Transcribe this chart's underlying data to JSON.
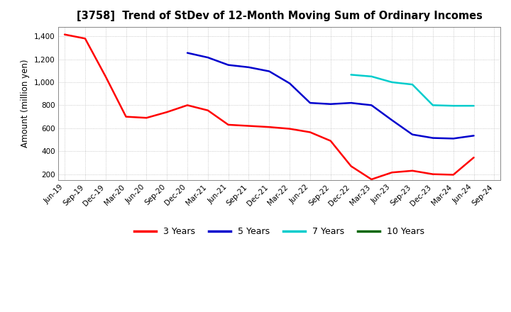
{
  "title": "[3758]  Trend of StDev of 12-Month Moving Sum of Ordinary Incomes",
  "ylabel": "Amount (million yen)",
  "background_color": "#ffffff",
  "grid_color": "#aaaaaa",
  "ylim": [
    150,
    1480
  ],
  "yticks": [
    200,
    400,
    600,
    800,
    1000,
    1200,
    1400
  ],
  "x_labels": [
    "Jun-19",
    "Sep-19",
    "Dec-19",
    "Mar-20",
    "Jun-20",
    "Sep-20",
    "Dec-20",
    "Mar-21",
    "Jun-21",
    "Sep-21",
    "Dec-21",
    "Mar-22",
    "Jun-22",
    "Sep-22",
    "Dec-22",
    "Mar-23",
    "Jun-23",
    "Sep-23",
    "Dec-23",
    "Mar-24",
    "Jun-24",
    "Sep-24"
  ],
  "red_x": [
    0,
    1,
    2,
    3,
    4,
    5,
    6,
    7,
    8,
    9,
    10,
    11,
    12,
    13,
    14,
    15,
    16,
    17,
    18,
    19,
    20
  ],
  "red_y": [
    1415,
    1380,
    1050,
    700,
    690,
    740,
    800,
    755,
    630,
    620,
    610,
    595,
    565,
    490,
    270,
    155,
    215,
    230,
    200,
    195,
    345
  ],
  "blue_x": [
    6,
    7,
    8,
    9,
    10,
    11,
    12,
    13,
    14,
    15,
    16,
    17,
    18,
    19,
    20
  ],
  "blue_y": [
    1255,
    1215,
    1150,
    1130,
    1095,
    990,
    820,
    810,
    820,
    800,
    670,
    545,
    515,
    510,
    535
  ],
  "cyan_x": [
    14,
    15,
    16,
    17,
    18,
    19,
    20
  ],
  "cyan_y": [
    1065,
    1050,
    1000,
    980,
    800,
    795,
    795
  ],
  "series_colors": {
    "3 Years": "#ff0000",
    "5 Years": "#0000cd",
    "7 Years": "#00cccc",
    "10 Years": "#006600"
  },
  "linewidth": 1.8,
  "title_fontsize": 10.5,
  "axis_fontsize": 8.5,
  "tick_fontsize": 7.5,
  "legend_fontsize": 9
}
